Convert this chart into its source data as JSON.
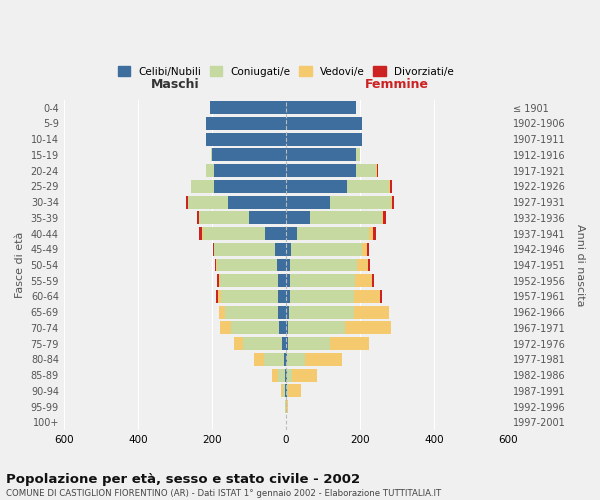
{
  "age_groups": [
    "0-4",
    "5-9",
    "10-14",
    "15-19",
    "20-24",
    "25-29",
    "30-34",
    "35-39",
    "40-44",
    "45-49",
    "50-54",
    "55-59",
    "60-64",
    "65-69",
    "70-74",
    "75-79",
    "80-84",
    "85-89",
    "90-94",
    "95-99",
    "100+"
  ],
  "birth_years": [
    "1997-2001",
    "1992-1996",
    "1987-1991",
    "1982-1986",
    "1977-1981",
    "1972-1976",
    "1967-1971",
    "1962-1966",
    "1957-1961",
    "1952-1956",
    "1947-1951",
    "1942-1946",
    "1937-1941",
    "1932-1936",
    "1927-1931",
    "1922-1926",
    "1917-1921",
    "1912-1916",
    "1907-1911",
    "1902-1906",
    "≤ 1901"
  ],
  "maschi": {
    "celibi": [
      205,
      215,
      215,
      200,
      195,
      195,
      155,
      100,
      55,
      28,
      25,
      22,
      20,
      20,
      18,
      10,
      5,
      3,
      2,
      0,
      0
    ],
    "coniugati": [
      0,
      0,
      2,
      3,
      20,
      60,
      110,
      135,
      170,
      165,
      160,
      155,
      155,
      145,
      130,
      105,
      55,
      18,
      5,
      1,
      0
    ],
    "vedovi": [
      0,
      0,
      0,
      0,
      0,
      0,
      0,
      0,
      2,
      2,
      3,
      3,
      8,
      15,
      30,
      25,
      25,
      15,
      5,
      0,
      0
    ],
    "divorziati": [
      0,
      0,
      0,
      0,
      0,
      0,
      5,
      5,
      8,
      3,
      3,
      5,
      5,
      0,
      0,
      0,
      0,
      0,
      0,
      0,
      0
    ]
  },
  "femmine": {
    "nubili": [
      190,
      205,
      205,
      190,
      190,
      165,
      120,
      65,
      30,
      15,
      12,
      12,
      10,
      8,
      5,
      5,
      3,
      3,
      2,
      0,
      0
    ],
    "coniugate": [
      0,
      0,
      2,
      10,
      55,
      115,
      165,
      195,
      195,
      190,
      180,
      175,
      175,
      175,
      155,
      115,
      50,
      15,
      5,
      1,
      0
    ],
    "vedove": [
      0,
      0,
      0,
      0,
      2,
      2,
      3,
      3,
      10,
      15,
      30,
      45,
      70,
      95,
      125,
      105,
      100,
      65,
      35,
      5,
      0
    ],
    "divorziate": [
      0,
      0,
      0,
      0,
      3,
      5,
      5,
      8,
      10,
      5,
      5,
      5,
      5,
      0,
      0,
      0,
      0,
      0,
      0,
      0,
      0
    ]
  },
  "colors": {
    "celibi_nubili": "#3d6e9e",
    "coniugati": "#c5d9a0",
    "vedovi": "#f5c96e",
    "divorziati": "#cc2222"
  },
  "xlim": 600,
  "title": "Popolazione per età, sesso e stato civile - 2002",
  "subtitle": "COMUNE DI CASTIGLION FIORENTINO (AR) - Dati ISTAT 1° gennaio 2002 - Elaborazione TUTTITALIA.IT",
  "ylabel_left": "Fasce di età",
  "ylabel_right": "Anni di nascita",
  "xlabel_left": "Maschi",
  "xlabel_right": "Femmine",
  "legend_labels": [
    "Celibi/Nubili",
    "Coniugati/e",
    "Vedovi/e",
    "Divorziati/e"
  ],
  "background_color": "#f0f0f0"
}
